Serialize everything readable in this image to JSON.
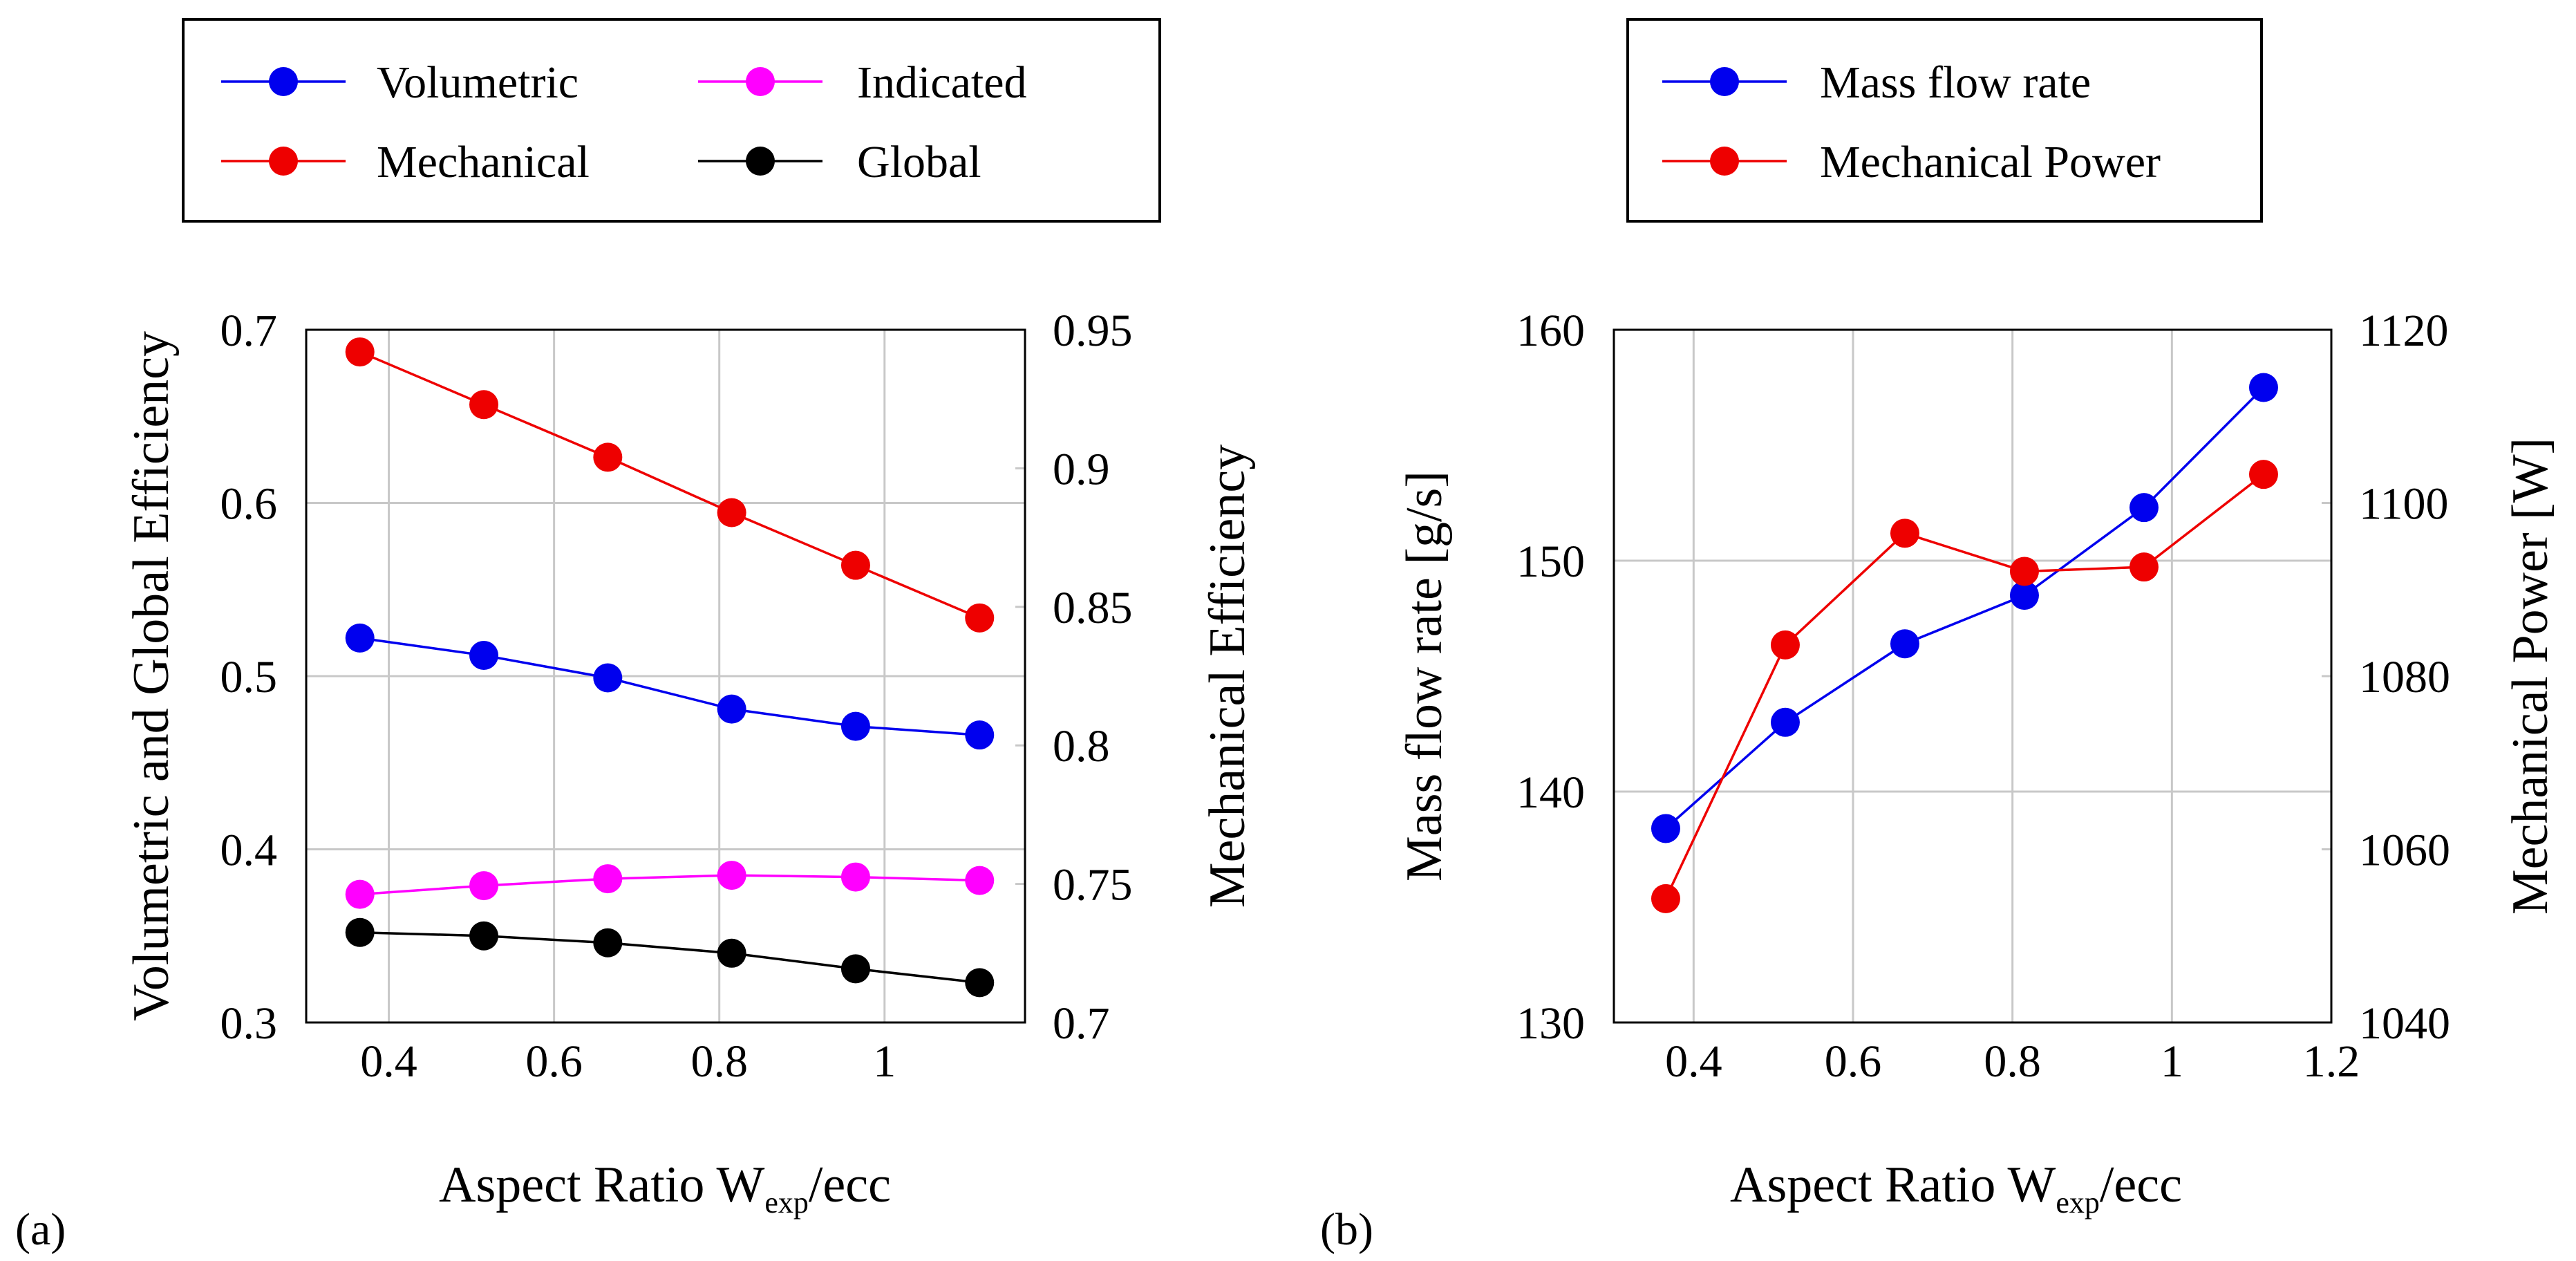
{
  "colors": {
    "blue": "#0000ee",
    "red": "#ee0000",
    "magenta": "#ff00ff",
    "black": "#000000",
    "grid": "#c8c8c8"
  },
  "chart_data": [
    {
      "id": "a",
      "panel_label": "(a)",
      "type": "line",
      "xlabel": {
        "main": "Aspect Ratio W",
        "sub": "exp",
        "rest": "/ecc"
      },
      "ylabel_left": "Volumetric and Global Efficiency",
      "ylabel_right": "Mechanical Efficiency",
      "xlim": [
        0.3,
        1.17
      ],
      "ylim_left": [
        0.3,
        0.7
      ],
      "ylim_right": [
        0.7,
        0.95
      ],
      "x_ticks": [
        0.4,
        0.6,
        0.8,
        1
      ],
      "x_tick_labels": [
        "0.4",
        "0.6",
        "0.8",
        "1"
      ],
      "y_ticks_left": [
        0.3,
        0.4,
        0.5,
        0.6,
        0.7
      ],
      "y_tick_labels_left": [
        "0.3",
        "0.4",
        "0.5",
        "0.6",
        "0.7"
      ],
      "y_ticks_right": [
        0.7,
        0.75,
        0.8,
        0.85,
        0.9,
        0.95
      ],
      "y_tick_labels_right": [
        "0.7",
        "0.75",
        "0.8",
        "0.85",
        "0.9",
        "0.95"
      ],
      "x": [
        0.365,
        0.515,
        0.665,
        0.815,
        0.965,
        1.115
      ],
      "series": [
        {
          "name": "Volumetric",
          "axis": "left",
          "color": "blue",
          "values": [
            0.522,
            0.512,
            0.499,
            0.481,
            0.471,
            0.466
          ]
        },
        {
          "name": "Mechanical",
          "axis": "right",
          "color": "red",
          "values": [
            0.942,
            0.923,
            0.904,
            0.884,
            0.865,
            0.846
          ]
        },
        {
          "name": "Indicated",
          "axis": "left",
          "color": "magenta",
          "values": [
            0.374,
            0.379,
            0.383,
            0.385,
            0.384,
            0.382
          ]
        },
        {
          "name": "Global",
          "axis": "left",
          "color": "black",
          "values": [
            0.352,
            0.35,
            0.346,
            0.34,
            0.331,
            0.323
          ]
        }
      ],
      "legend": {
        "placement": "top",
        "entries": [
          "Volumetric",
          "Indicated",
          "Mechanical",
          "Global"
        ]
      }
    },
    {
      "id": "b",
      "panel_label": "(b)",
      "type": "line",
      "xlabel": {
        "main": "Aspect Ratio W",
        "sub": "exp",
        "rest": "/ecc"
      },
      "ylabel_left": "Mass flow rate [g/s]",
      "ylabel_right": "Mechanical Power [W]",
      "xlim": [
        0.3,
        1.2
      ],
      "ylim_left": [
        130,
        160
      ],
      "ylim_right": [
        1040,
        1120
      ],
      "x_ticks": [
        0.4,
        0.6,
        0.8,
        1,
        1.2
      ],
      "x_tick_labels": [
        "0.4",
        "0.6",
        "0.8",
        "1",
        "1.2"
      ],
      "y_ticks_left": [
        130,
        140,
        150,
        160
      ],
      "y_tick_labels_left": [
        "130",
        "140",
        "150",
        "160"
      ],
      "y_ticks_right": [
        1040,
        1060,
        1080,
        1100,
        1120
      ],
      "y_tick_labels_right": [
        "1040",
        "1060",
        "1080",
        "1100",
        "1120"
      ],
      "x": [
        0.365,
        0.515,
        0.665,
        0.815,
        0.965,
        1.115
      ],
      "series": [
        {
          "name": "Mass flow rate",
          "axis": "left",
          "color": "blue",
          "values": [
            138.4,
            143.0,
            146.4,
            148.5,
            152.3,
            157.5
          ]
        },
        {
          "name": "Mechanical Power",
          "axis": "right",
          "color": "red",
          "values": [
            1054.3,
            1083.6,
            1096.5,
            1092.1,
            1092.6,
            1103.3
          ]
        }
      ],
      "legend": {
        "placement": "top",
        "entries": [
          "Mass flow rate",
          "Mechanical Power"
        ]
      }
    }
  ]
}
